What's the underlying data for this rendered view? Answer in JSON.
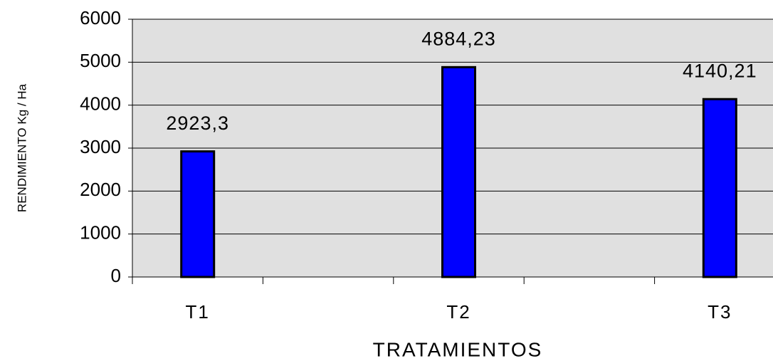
{
  "chart_data": {
    "type": "bar",
    "y_axis_label": "RENDIMIENTO Kg / Ha",
    "x_axis_label": "TRATAMIENTOS",
    "categories": [
      "T1",
      null,
      "T2",
      null,
      "T3"
    ],
    "values": [
      2923.3,
      null,
      4884.23,
      null,
      4140.21
    ],
    "value_labels": [
      "2923,3",
      null,
      "4884,23",
      null,
      "4140,21"
    ],
    "color": "#0000ff",
    "ylim": [
      0,
      6000
    ],
    "yticks": [
      0,
      1000,
      2000,
      3000,
      4000,
      5000,
      6000
    ],
    "grid": true
  }
}
